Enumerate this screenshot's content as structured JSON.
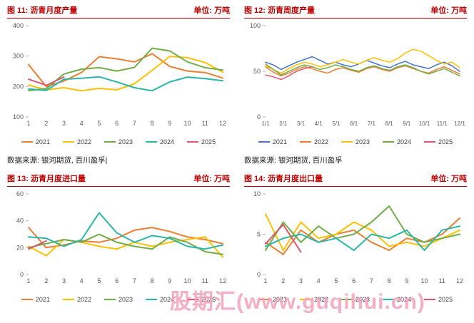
{
  "colors": {
    "title": "#C00000",
    "axis_text": "#595959",
    "legend_text": "#404040",
    "watermark": "#F5A3BC"
  },
  "sources": {
    "left": "数据来源: 银河期货, 百川盈孚|",
    "right": "数据来源: 银河期货, 百川盈孚"
  },
  "watermark": {
    "text": "股期汇(www.guqihui.cn)"
  },
  "chart_data": [
    {
      "type": "line",
      "title": "图 11: 沥青月度产量",
      "unit": "单位: 万吨",
      "xlabel": "",
      "ylabel": "",
      "ylim": [
        100,
        400
      ],
      "yticks": [
        100,
        200,
        300,
        400
      ],
      "grid": false,
      "legend_position": "bottom",
      "x_labels": [
        "1",
        "2",
        "3",
        "4",
        "5",
        "6",
        "7",
        "8",
        "9",
        "10",
        "11",
        "12"
      ],
      "series": [
        {
          "name": "2021",
          "color": "#ED7D31",
          "values": [
            272,
            200,
            218,
            246,
            298,
            291,
            281,
            308,
            266,
            251,
            246,
            228
          ]
        },
        {
          "name": "2022",
          "color": "#FFC000",
          "values": [
            205,
            189,
            196,
            186,
            194,
            189,
            209,
            253,
            299,
            295,
            279,
            247
          ]
        },
        {
          "name": "2023",
          "color": "#70AD47",
          "values": [
            186,
            193,
            241,
            257,
            262,
            251,
            263,
            326,
            317,
            281,
            262,
            254
          ]
        },
        {
          "name": "2024",
          "color": "#29B6A8",
          "values": [
            192,
            187,
            224,
            227,
            232,
            215,
            196,
            186,
            215,
            231,
            226,
            219
          ]
        },
        {
          "name": "2025",
          "color": "#E0556A",
          "values": [
            224,
            204,
            231,
            null,
            null,
            null,
            null,
            null,
            null,
            null,
            null,
            null
          ]
        }
      ]
    },
    {
      "type": "line",
      "title": "图 12: 沥青周度产量",
      "unit": "单位: 万吨",
      "xlabel": "",
      "ylabel": "",
      "ylim": [
        0,
        100
      ],
      "yticks": [
        0,
        50,
        100
      ],
      "grid": false,
      "legend_position": "bottom",
      "x_labels": [
        "1/1",
        "2/1",
        "3/1",
        "4/1",
        "5/1",
        "6/1",
        "7/1",
        "8/1",
        "9/1",
        "10/1",
        "11/1",
        "12/1"
      ],
      "series": [
        {
          "name": "2021",
          "color": "#4472C4",
          "values": [
            60,
            57,
            52,
            56,
            60,
            63,
            66,
            62,
            58,
            60,
            57,
            55,
            58,
            62,
            59,
            56,
            54,
            58,
            61,
            57,
            55,
            53,
            57,
            60,
            56,
            50
          ]
        },
        {
          "name": "2022",
          "color": "#ED7D31",
          "values": [
            55,
            49,
            45,
            48,
            52,
            55,
            53,
            50,
            48,
            52,
            54,
            51,
            49,
            53,
            55,
            52,
            50,
            54,
            56,
            53,
            50,
            48,
            52,
            55,
            51,
            47
          ]
        },
        {
          "name": "2023",
          "color": "#FFC000",
          "values": [
            56,
            52,
            48,
            53,
            57,
            60,
            58,
            55,
            57,
            60,
            63,
            60,
            58,
            62,
            65,
            62,
            60,
            64,
            70,
            74,
            72,
            67,
            62,
            58,
            60,
            54
          ]
        },
        {
          "name": "2024",
          "color": "#70AD47",
          "values": [
            58,
            52,
            46,
            50,
            54,
            57,
            55,
            52,
            54,
            57,
            55,
            52,
            50,
            54,
            56,
            53,
            51,
            55,
            57,
            54,
            50,
            47,
            50,
            53,
            49,
            45
          ]
        },
        {
          "name": "2025",
          "color": "#E0556A",
          "values": [
            46,
            44,
            41,
            45,
            50,
            53,
            55,
            null,
            null,
            null,
            null,
            null,
            null,
            null,
            null,
            null,
            null,
            null,
            null,
            null,
            null,
            null,
            null,
            null,
            null,
            null
          ]
        }
      ]
    },
    {
      "type": "line",
      "title": "图 13: 沥青月度进口量",
      "unit": "单位: 万吨",
      "xlabel": "",
      "ylabel": "",
      "ylim": [
        0,
        60
      ],
      "yticks": [
        0,
        20,
        40,
        60
      ],
      "grid": false,
      "legend_position": "bottom",
      "x_labels": [
        "1",
        "2",
        "3",
        "4",
        "5",
        "6",
        "7",
        "8",
        "9",
        "10",
        "11",
        "12"
      ],
      "series": [
        {
          "name": "2021",
          "color": "#ED7D31",
          "values": [
            35,
            20,
            22,
            25,
            24,
            27,
            33,
            35,
            32,
            28,
            26,
            23
          ]
        },
        {
          "name": "2022",
          "color": "#FFC000",
          "values": [
            21,
            14,
            26,
            24,
            21,
            19,
            24,
            21,
            24,
            26,
            28,
            13
          ]
        },
        {
          "name": "2023",
          "color": "#70AD47",
          "values": [
            20,
            23,
            26,
            24,
            30,
            24,
            21,
            19,
            28,
            24,
            17,
            15
          ]
        },
        {
          "name": "2024",
          "color": "#29B6A8",
          "values": [
            28,
            27,
            21,
            26,
            46,
            31,
            24,
            29,
            27,
            21,
            19,
            22
          ]
        },
        {
          "name": "2025",
          "color": "#E0556A",
          "values": [
            19,
            25,
            null,
            null,
            null,
            null,
            null,
            null,
            null,
            null,
            null,
            null
          ]
        }
      ]
    },
    {
      "type": "line",
      "title": "图 14: 沥青月度出口量",
      "unit": "单位: 万吨",
      "xlabel": "",
      "ylabel": "",
      "ylim": [
        0,
        10
      ],
      "yticks": [
        0,
        5,
        10
      ],
      "grid": false,
      "legend_position": "bottom",
      "x_labels": [
        "1",
        "2",
        "3",
        "4",
        "5",
        "6",
        "7",
        "8",
        "9",
        "10",
        "11",
        "12"
      ],
      "series": [
        {
          "name": "2021",
          "color": "#ED7D31",
          "values": [
            4.0,
            2.5,
            5.5,
            4.0,
            5.0,
            5.5,
            4.0,
            3.0,
            4.5,
            4.0,
            5.0,
            7.0
          ]
        },
        {
          "name": "2022",
          "color": "#FFC000",
          "values": [
            7.5,
            3.0,
            6.5,
            4.5,
            5.0,
            6.5,
            5.5,
            3.5,
            4.0,
            3.5,
            4.5,
            5.5
          ]
        },
        {
          "name": "2023",
          "color": "#70AD47",
          "values": [
            3.0,
            6.5,
            4.0,
            6.0,
            4.5,
            5.0,
            6.5,
            8.5,
            5.0,
            4.0,
            4.5,
            5.0
          ]
        },
        {
          "name": "2024",
          "color": "#29B6A8",
          "values": [
            3.5,
            4.5,
            5.0,
            4.0,
            4.5,
            3.0,
            5.0,
            4.5,
            5.5,
            3.0,
            5.5,
            6.0
          ]
        },
        {
          "name": "2025",
          "color": "#E0556A",
          "values": [
            3.8,
            6.2,
            2.8,
            null,
            null,
            null,
            null,
            null,
            null,
            null,
            null,
            null
          ]
        }
      ]
    }
  ]
}
